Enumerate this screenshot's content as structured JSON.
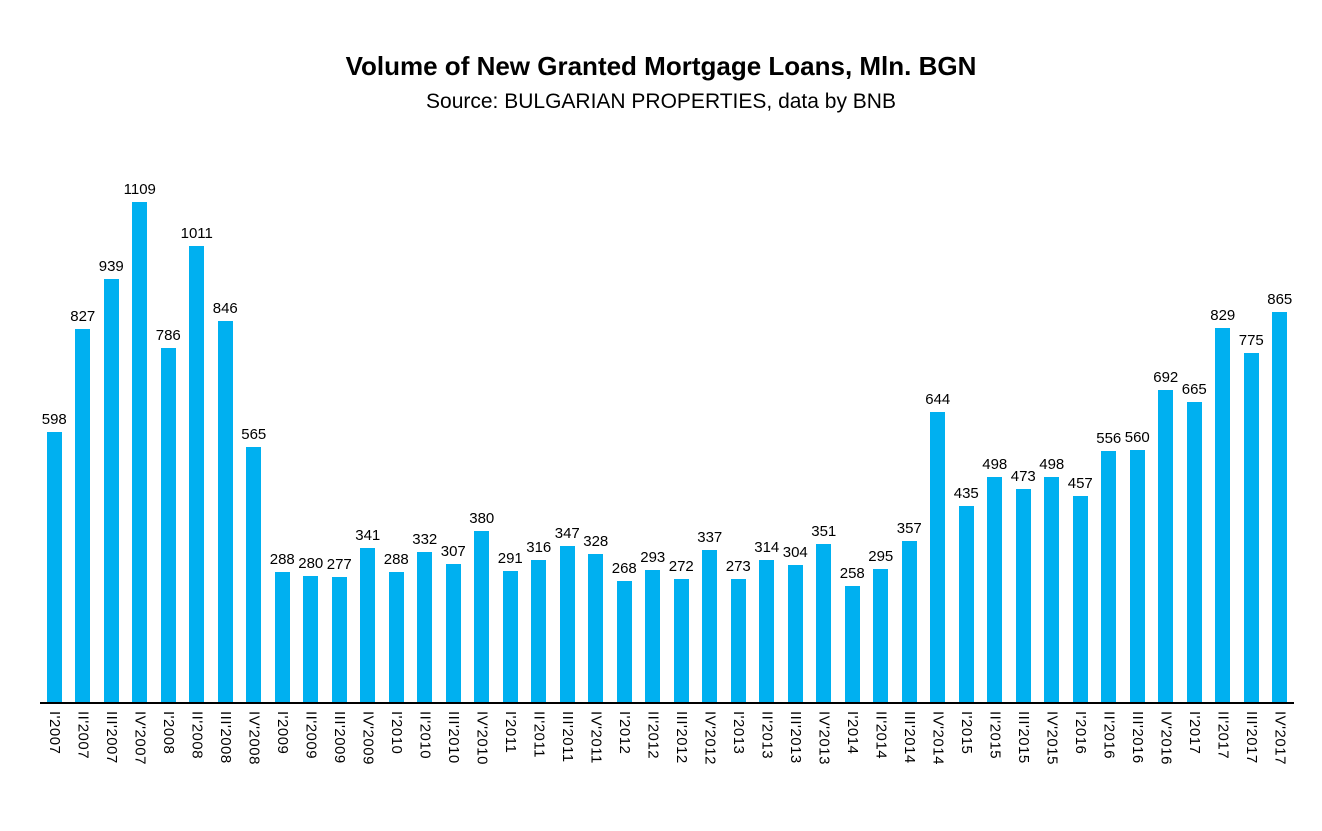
{
  "header": {
    "title": "Volume of New Granted Mortgage Loans, Mln. BGN",
    "subtitle": "Source: BULGARIAN PROPERTIES, data by BNB"
  },
  "colors": {
    "bar": "#00B0F0",
    "axis": "#000000",
    "text": "#000000",
    "background": "#FFFFFF"
  },
  "chart_data": {
    "type": "bar",
    "title": "Volume of New Granted Mortgage Loans, Mln. BGN",
    "subtitle": "Source: BULGARIAN PROPERTIES, data by BNB",
    "categories": [
      "I'2007",
      "II'2007",
      "III'2007",
      "IV'2007",
      "I'2008",
      "II'2008",
      "III'2008",
      "IV'2008",
      "I'2009",
      "II'2009",
      "III'2009",
      "IV'2009",
      "I'2010",
      "II'2010",
      "III'2010",
      "IV'2010",
      "I'2011",
      "II'2011",
      "III'2011",
      "IV'2011",
      "I'2012",
      "II'2012",
      "III'2012",
      "IV'2012",
      "I'2013",
      "II'2013",
      "III'2013",
      "IV'2013",
      "I'2014",
      "II'2014",
      "III'2014",
      "IV'2014",
      "I'2015",
      "II'2015",
      "III'2015",
      "IV'2015",
      "I'2016",
      "II'2016",
      "III'2016",
      "IV'2016",
      "I'2017",
      "II'2017",
      "III'2017",
      "IV'2017"
    ],
    "values": [
      598,
      827,
      939,
      1109,
      786,
      1011,
      846,
      565,
      288,
      280,
      277,
      341,
      288,
      332,
      307,
      380,
      291,
      316,
      347,
      328,
      268,
      293,
      272,
      337,
      273,
      314,
      304,
      351,
      258,
      295,
      357,
      644,
      435,
      498,
      473,
      498,
      457,
      556,
      560,
      692,
      665,
      829,
      775,
      865
    ],
    "data_labels": true,
    "xlabel": "",
    "ylabel": "",
    "ylim": [
      0,
      1109
    ],
    "grid": false,
    "legend": "none",
    "bar_color": "#00B0F0"
  }
}
